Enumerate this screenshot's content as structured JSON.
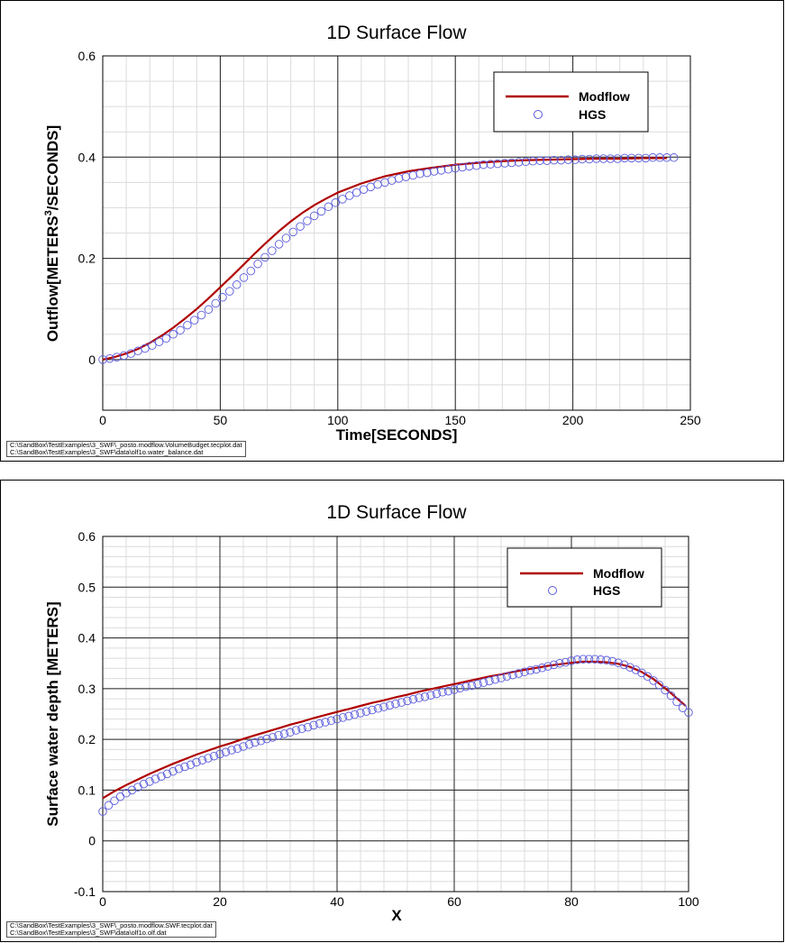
{
  "chart_data": [
    {
      "type": "line",
      "title": "1D Surface Flow",
      "xlabel": "Time[SECONDS]",
      "ylabel_prefix": "Outflow[METERS",
      "ylabel_sup": "3",
      "ylabel_suffix": "/SECONDS]",
      "xlim": [
        0,
        250
      ],
      "ylim": [
        -0.1,
        0.6
      ],
      "x_ticks": [
        "0",
        "50",
        "100",
        "150",
        "200",
        "250"
      ],
      "y_ticks": [
        "0",
        "0.2",
        "0.4",
        "0.6"
      ],
      "legend_position": "top-right",
      "grid": true,
      "series": [
        {
          "name": "Modflow",
          "style": "line",
          "color": "#b00000",
          "x": [
            0,
            5,
            10,
            15,
            20,
            25,
            30,
            35,
            40,
            45,
            50,
            55,
            60,
            65,
            70,
            75,
            80,
            85,
            90,
            95,
            100,
            110,
            120,
            130,
            140,
            150,
            160,
            170,
            180,
            190,
            200,
            210,
            220,
            230,
            240
          ],
          "y": [
            0,
            0.005,
            0.012,
            0.021,
            0.033,
            0.047,
            0.063,
            0.081,
            0.1,
            0.121,
            0.143,
            0.165,
            0.188,
            0.211,
            0.233,
            0.254,
            0.273,
            0.29,
            0.305,
            0.318,
            0.33,
            0.348,
            0.362,
            0.372,
            0.379,
            0.385,
            0.389,
            0.392,
            0.394,
            0.395,
            0.396,
            0.397,
            0.397,
            0.398,
            0.398
          ]
        },
        {
          "name": "HGS",
          "style": "markers",
          "color": "#5a5adc",
          "x": [
            0,
            3,
            6,
            9,
            12,
            15,
            18,
            21,
            24,
            27,
            30,
            33,
            36,
            39,
            42,
            45,
            48,
            51,
            54,
            57,
            60,
            63,
            66,
            69,
            72,
            75,
            78,
            81,
            84,
            87,
            90,
            93,
            96,
            99,
            102,
            105,
            108,
            111,
            114,
            117,
            120,
            123,
            126,
            129,
            132,
            135,
            138,
            141,
            144,
            147,
            150,
            153,
            156,
            159,
            162,
            165,
            168,
            171,
            174,
            177,
            180,
            183,
            186,
            189,
            192,
            195,
            198,
            201,
            204,
            207,
            210,
            213,
            216,
            219,
            222,
            225,
            228,
            231,
            234,
            237,
            240,
            243
          ],
          "y": [
            0,
            0.002,
            0.005,
            0.008,
            0.012,
            0.017,
            0.022,
            0.028,
            0.035,
            0.042,
            0.05,
            0.058,
            0.068,
            0.078,
            0.088,
            0.099,
            0.111,
            0.123,
            0.135,
            0.148,
            0.162,
            0.175,
            0.189,
            0.202,
            0.215,
            0.228,
            0.24,
            0.252,
            0.263,
            0.274,
            0.284,
            0.293,
            0.302,
            0.31,
            0.317,
            0.324,
            0.33,
            0.336,
            0.341,
            0.346,
            0.35,
            0.354,
            0.358,
            0.361,
            0.364,
            0.367,
            0.369,
            0.372,
            0.374,
            0.376,
            0.378,
            0.38,
            0.382,
            0.383,
            0.385,
            0.386,
            0.387,
            0.388,
            0.389,
            0.39,
            0.391,
            0.392,
            0.393,
            0.393,
            0.394,
            0.394,
            0.395,
            0.395,
            0.396,
            0.396,
            0.397,
            0.397,
            0.397,
            0.397,
            0.398,
            0.398,
            0.398,
            0.398,
            0.399,
            0.399,
            0.399,
            0.399
          ]
        }
      ],
      "source_files": [
        "C:\\SandBox\\TestExamples\\3_SWF\\_posto.modflow.VolumeBudget.tecplot.dat",
        "C:\\SandBox\\TestExamples\\3_SWF\\data\\olf1o.water_balance.dat"
      ]
    },
    {
      "type": "line",
      "title": "1D Surface Flow",
      "xlabel": "X",
      "ylabel": "Surface water depth [METERS]",
      "xlim": [
        0,
        100
      ],
      "ylim": [
        -0.1,
        0.6
      ],
      "x_ticks": [
        "0",
        "20",
        "40",
        "60",
        "80",
        "100"
      ],
      "y_ticks": [
        "-0.1",
        "0",
        "0.1",
        "0.2",
        "0.3",
        "0.4",
        "0.5",
        "0.6"
      ],
      "legend_position": "top-right",
      "grid": true,
      "series": [
        {
          "name": "Modflow",
          "style": "line",
          "color": "#b00000",
          "x": [
            0,
            2,
            4,
            6,
            8,
            10,
            12,
            14,
            16,
            18,
            20,
            22,
            24,
            26,
            28,
            30,
            32,
            34,
            36,
            38,
            40,
            42,
            44,
            46,
            48,
            50,
            52,
            54,
            56,
            58,
            60,
            62,
            64,
            66,
            68,
            70,
            72,
            74,
            76,
            78,
            80,
            82,
            84,
            86,
            88,
            90,
            92,
            94,
            96,
            98,
            99.5
          ],
          "y": [
            0.084,
            0.098,
            0.11,
            0.121,
            0.132,
            0.142,
            0.152,
            0.161,
            0.17,
            0.178,
            0.186,
            0.193,
            0.201,
            0.208,
            0.215,
            0.222,
            0.229,
            0.235,
            0.242,
            0.248,
            0.254,
            0.26,
            0.266,
            0.272,
            0.277,
            0.283,
            0.288,
            0.294,
            0.299,
            0.304,
            0.309,
            0.314,
            0.319,
            0.324,
            0.328,
            0.333,
            0.337,
            0.341,
            0.345,
            0.348,
            0.351,
            0.353,
            0.353,
            0.352,
            0.349,
            0.343,
            0.333,
            0.319,
            0.301,
            0.281,
            0.266
          ]
        },
        {
          "name": "HGS",
          "style": "markers",
          "color": "#5a5adc",
          "x": [
            0,
            1,
            2,
            3,
            4,
            5,
            6,
            7,
            8,
            9,
            10,
            11,
            12,
            13,
            14,
            15,
            16,
            17,
            18,
            19,
            20,
            21,
            22,
            23,
            24,
            25,
            26,
            27,
            28,
            29,
            30,
            31,
            32,
            33,
            34,
            35,
            36,
            37,
            38,
            39,
            40,
            41,
            42,
            43,
            44,
            45,
            46,
            47,
            48,
            49,
            50,
            51,
            52,
            53,
            54,
            55,
            56,
            57,
            58,
            59,
            60,
            61,
            62,
            63,
            64,
            65,
            66,
            67,
            68,
            69,
            70,
            71,
            72,
            73,
            74,
            75,
            76,
            77,
            78,
            79,
            80,
            81,
            82,
            83,
            84,
            85,
            86,
            87,
            88,
            89,
            90,
            91,
            92,
            93,
            94,
            95,
            96,
            97,
            98,
            99,
            100
          ],
          "y": [
            0.058,
            0.07,
            0.079,
            0.087,
            0.094,
            0.1,
            0.106,
            0.112,
            0.117,
            0.122,
            0.127,
            0.132,
            0.137,
            0.142,
            0.146,
            0.15,
            0.155,
            0.159,
            0.163,
            0.167,
            0.171,
            0.175,
            0.179,
            0.182,
            0.186,
            0.19,
            0.194,
            0.197,
            0.201,
            0.204,
            0.208,
            0.211,
            0.214,
            0.218,
            0.221,
            0.224,
            0.228,
            0.231,
            0.234,
            0.237,
            0.24,
            0.243,
            0.246,
            0.249,
            0.252,
            0.255,
            0.258,
            0.261,
            0.264,
            0.267,
            0.27,
            0.273,
            0.276,
            0.279,
            0.282,
            0.284,
            0.287,
            0.29,
            0.293,
            0.295,
            0.298,
            0.301,
            0.304,
            0.306,
            0.309,
            0.312,
            0.315,
            0.318,
            0.321,
            0.324,
            0.327,
            0.33,
            0.333,
            0.336,
            0.338,
            0.341,
            0.344,
            0.347,
            0.35,
            0.352,
            0.355,
            0.357,
            0.358,
            0.358,
            0.358,
            0.357,
            0.356,
            0.354,
            0.351,
            0.347,
            0.342,
            0.337,
            0.331,
            0.324,
            0.316,
            0.307,
            0.297,
            0.286,
            0.274,
            0.262,
            0.253
          ]
        }
      ],
      "source_files": [
        "C:\\SandBox\\TestExamples\\3_SWF\\_posto.modflow.SWF.tecplot.dat",
        "C:\\SandBox\\TestExamples\\3_SWF\\data\\olf1o.olf.dat"
      ]
    }
  ]
}
